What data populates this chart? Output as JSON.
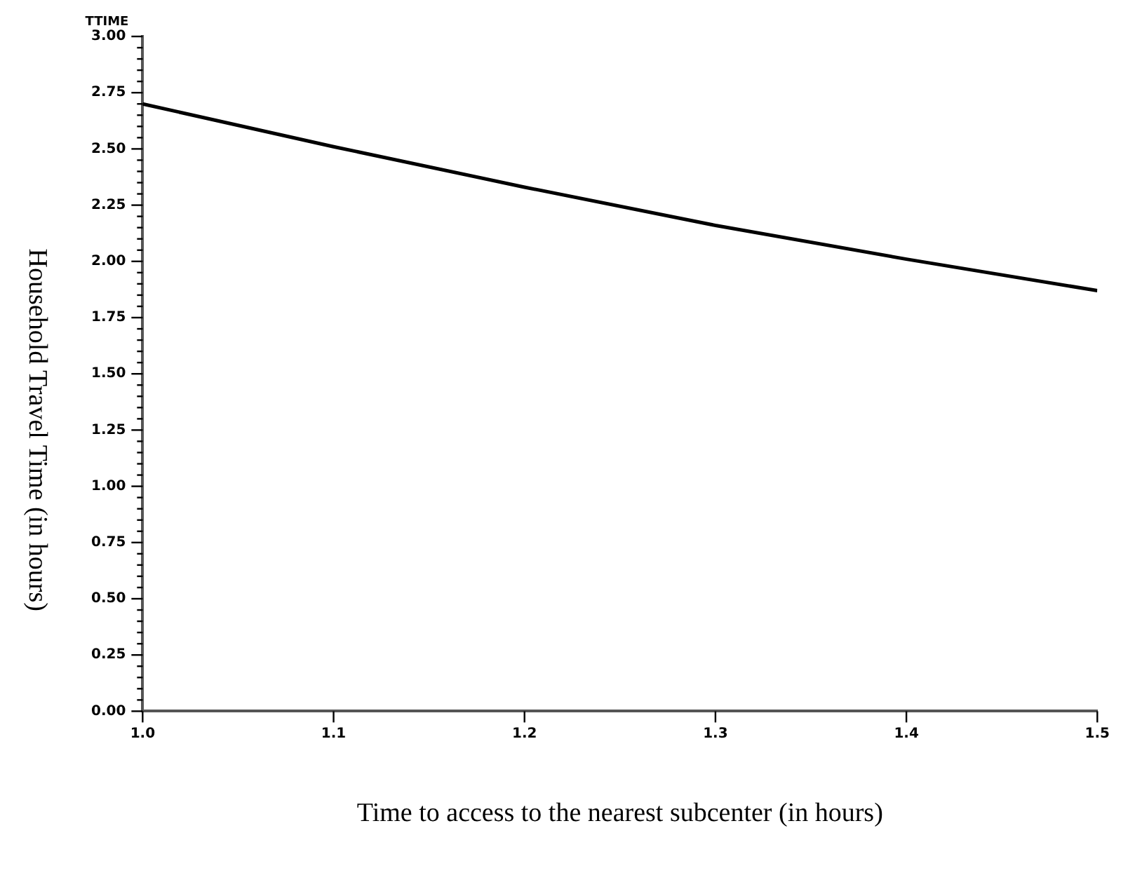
{
  "chart_data": {
    "type": "line",
    "xlabel": "Time to access to the nearest subcenter (in hours)",
    "ylabel": "Household Travel Time (in hours)",
    "annotations": [
      "TTIME"
    ],
    "x": [
      1.0,
      1.1,
      1.2,
      1.3,
      1.4,
      1.5
    ],
    "series": [
      {
        "color": "#000000",
        "values": [
          2.7,
          2.51,
          2.33,
          2.16,
          2.01,
          1.87
        ]
      }
    ],
    "xlim": [
      1.0,
      1.5
    ],
    "xticks": [
      {
        "value": 1.0,
        "label": "1.0"
      },
      {
        "value": 1.1,
        "label": "1.1"
      },
      {
        "value": 1.2,
        "label": "1.2"
      },
      {
        "value": 1.3,
        "label": "1.3"
      },
      {
        "value": 1.4,
        "label": "1.4"
      },
      {
        "value": 1.5,
        "label": "1.5"
      }
    ],
    "ylim": [
      0,
      3
    ],
    "yticks": [
      {
        "value": 0,
        "label": "0.00"
      },
      {
        "value": 0.05,
        "label": null
      },
      {
        "value": 0.1,
        "label": null
      },
      {
        "value": 0.15,
        "label": null
      },
      {
        "value": 0.2,
        "label": null
      },
      {
        "value": 0.25,
        "label": "0.25"
      },
      {
        "value": 0.3,
        "label": null
      },
      {
        "value": 0.35,
        "label": null
      },
      {
        "value": 0.4,
        "label": null
      },
      {
        "value": 0.45,
        "label": null
      },
      {
        "value": 0.5,
        "label": "0.50"
      },
      {
        "value": 0.55,
        "label": null
      },
      {
        "value": 0.6,
        "label": null
      },
      {
        "value": 0.65,
        "label": null
      },
      {
        "value": 0.7,
        "label": null
      },
      {
        "value": 0.75,
        "label": "0.75"
      },
      {
        "value": 0.8,
        "label": null
      },
      {
        "value": 0.85,
        "label": null
      },
      {
        "value": 0.9,
        "label": null
      },
      {
        "value": 0.95,
        "label": null
      },
      {
        "value": 1,
        "label": "1.00"
      },
      {
        "value": 1.05,
        "label": null
      },
      {
        "value": 1.1,
        "label": null
      },
      {
        "value": 1.15,
        "label": null
      },
      {
        "value": 1.2,
        "label": null
      },
      {
        "value": 1.25,
        "label": "1.25"
      },
      {
        "value": 1.3,
        "label": null
      },
      {
        "value": 1.35,
        "label": null
      },
      {
        "value": 1.4,
        "label": null
      },
      {
        "value": 1.45,
        "label": null
      },
      {
        "value": 1.5,
        "label": "1.50"
      },
      {
        "value": 1.55,
        "label": null
      },
      {
        "value": 1.6,
        "label": null
      },
      {
        "value": 1.65,
        "label": null
      },
      {
        "value": 1.7,
        "label": null
      },
      {
        "value": 1.75,
        "label": "1.75"
      },
      {
        "value": 1.8,
        "label": null
      },
      {
        "value": 1.85,
        "label": null
      },
      {
        "value": 1.9,
        "label": null
      },
      {
        "value": 1.95,
        "label": null
      },
      {
        "value": 2,
        "label": "2.00"
      },
      {
        "value": 2.05,
        "label": null
      },
      {
        "value": 2.1,
        "label": null
      },
      {
        "value": 2.15,
        "label": null
      },
      {
        "value": 2.2,
        "label": null
      },
      {
        "value": 2.25,
        "label": "2.25"
      },
      {
        "value": 2.3,
        "label": null
      },
      {
        "value": 2.35,
        "label": null
      },
      {
        "value": 2.4,
        "label": null
      },
      {
        "value": 2.45,
        "label": null
      },
      {
        "value": 2.5,
        "label": "2.50"
      },
      {
        "value": 2.55,
        "label": null
      },
      {
        "value": 2.6,
        "label": null
      },
      {
        "value": 2.65,
        "label": null
      },
      {
        "value": 2.7,
        "label": null
      },
      {
        "value": 2.75,
        "label": "2.75"
      },
      {
        "value": 2.8,
        "label": null
      },
      {
        "value": 2.85,
        "label": null
      },
      {
        "value": 2.9,
        "label": null
      },
      {
        "value": 2.95,
        "label": null
      },
      {
        "value": 3,
        "label": "3.00"
      }
    ],
    "grid": false,
    "legend": false,
    "marker": "none",
    "line_style": "solid"
  }
}
